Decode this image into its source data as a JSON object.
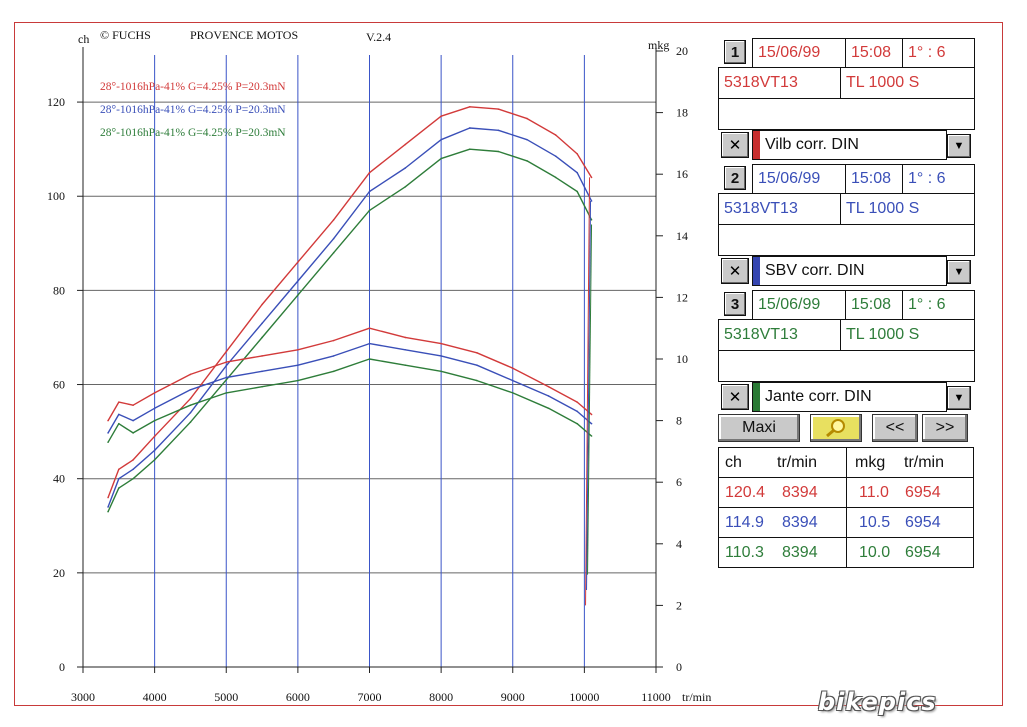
{
  "header": {
    "left_unit": "ch",
    "copyright": "© FUCHS",
    "company": "PROVENCE MOTOS",
    "version": "V.2.4",
    "right_unit": "mkg",
    "x_unit": "tr/min"
  },
  "colors": {
    "red": "#d23a3a",
    "blue": "#3a4fb8",
    "green": "#2e7d3a",
    "grid_vertical": "#3a55c8",
    "grid_horizontal": "#666666"
  },
  "chart_data": {
    "type": "line",
    "title": "",
    "xlabel": "tr/min",
    "ylabel_left": "ch",
    "ylabel_right": "mkg",
    "xlim": [
      3000,
      11000
    ],
    "x_ticks": [
      3000,
      4000,
      5000,
      6000,
      7000,
      8000,
      9000,
      10000,
      11000
    ],
    "ylim_left": [
      0,
      130
    ],
    "y_ticks_left": [
      0,
      20,
      40,
      60,
      80,
      100,
      120
    ],
    "ylim_right": [
      0,
      20
    ],
    "y_ticks_right": [
      0,
      2,
      4,
      6,
      8,
      10,
      12,
      14,
      16,
      18,
      20
    ],
    "grid": true,
    "legend": [
      {
        "label": "28°-1016hPa-41% G=4.25% P=20.3mN",
        "color": "#d23a3a"
      },
      {
        "label": "28°-1016hPa-41% G=4.25% P=20.3mN",
        "color": "#3a4fb8"
      },
      {
        "label": "28°-1016hPa-41% G=4.25% P=20.3mN",
        "color": "#2e7d3a"
      }
    ],
    "series": [
      {
        "quantity": "power",
        "axis": "left",
        "color": "#d23a3a",
        "x": [
          3350,
          3500,
          3700,
          4000,
          4500,
          5000,
          5500,
          6000,
          6500,
          7000,
          7500,
          8000,
          8400,
          8800,
          9200,
          9600,
          9900,
          10100
        ],
        "y": [
          36,
          42,
          44,
          49,
          57,
          67,
          77,
          86,
          95,
          105,
          111,
          117,
          119,
          118.5,
          116.5,
          113,
          109,
          104
        ]
      },
      {
        "quantity": "power",
        "axis": "left",
        "color": "#3a4fb8",
        "x": [
          3350,
          3500,
          3700,
          4000,
          4500,
          5000,
          5500,
          6000,
          6500,
          7000,
          7500,
          8000,
          8400,
          8800,
          9200,
          9600,
          9900,
          10100
        ],
        "y": [
          34,
          40,
          42,
          46,
          54,
          64,
          73,
          82,
          91,
          101,
          106,
          112,
          114.5,
          114,
          112,
          108.5,
          105,
          99
        ]
      },
      {
        "quantity": "power",
        "axis": "left",
        "color": "#2e7d3a",
        "x": [
          3350,
          3500,
          3700,
          4000,
          4500,
          5000,
          5500,
          6000,
          6500,
          7000,
          7500,
          8000,
          8400,
          8800,
          9200,
          9600,
          9900,
          10100
        ],
        "y": [
          33,
          38,
          40,
          44,
          52,
          61,
          70,
          79,
          88,
          97,
          102,
          108,
          110,
          109.5,
          107.5,
          104,
          101,
          95
        ]
      },
      {
        "quantity": "torque",
        "axis": "right",
        "color": "#d23a3a",
        "x": [
          3350,
          3500,
          3700,
          4000,
          4500,
          5000,
          5500,
          6000,
          6500,
          7000,
          7500,
          8000,
          8500,
          9000,
          9500,
          9900,
          10100
        ],
        "y": [
          8.0,
          8.6,
          8.5,
          8.9,
          9.5,
          9.9,
          10.1,
          10.3,
          10.6,
          11.0,
          10.7,
          10.5,
          10.2,
          9.7,
          9.1,
          8.6,
          8.2
        ]
      },
      {
        "quantity": "torque",
        "axis": "right",
        "color": "#3a4fb8",
        "x": [
          3350,
          3500,
          3700,
          4000,
          4500,
          5000,
          5500,
          6000,
          6500,
          7000,
          7500,
          8000,
          8500,
          9000,
          9500,
          9900,
          10100
        ],
        "y": [
          7.6,
          8.2,
          8.0,
          8.4,
          9.0,
          9.4,
          9.6,
          9.8,
          10.1,
          10.5,
          10.3,
          10.1,
          9.8,
          9.3,
          8.8,
          8.3,
          7.9
        ]
      },
      {
        "quantity": "torque",
        "axis": "right",
        "color": "#2e7d3a",
        "x": [
          3350,
          3500,
          3700,
          4000,
          4500,
          5000,
          5500,
          6000,
          6500,
          7000,
          7500,
          8000,
          8500,
          9000,
          9500,
          9900,
          10100
        ],
        "y": [
          7.3,
          7.9,
          7.6,
          8.0,
          8.5,
          8.9,
          9.1,
          9.3,
          9.6,
          10.0,
          9.8,
          9.6,
          9.3,
          8.9,
          8.4,
          7.9,
          7.5
        ]
      }
    ]
  },
  "runs": [
    {
      "number": "1",
      "date": "15/06/99",
      "time": "15:08",
      "ratio": "1° : 6",
      "code": "5318VT13",
      "model": "TL 1000 S",
      "correction": "Vilb corr. DIN",
      "color": "#d23a3a"
    },
    {
      "number": "2",
      "date": "15/06/99",
      "time": "15:08",
      "ratio": "1° : 6",
      "code": "5318VT13",
      "model": "TL 1000 S",
      "correction": "SBV corr. DIN",
      "color": "#3a4fb8"
    },
    {
      "number": "3",
      "date": "15/06/99",
      "time": "15:08",
      "ratio": "1° : 6",
      "code": "5318VT13",
      "model": "TL 1000 S",
      "correction": "Jante corr. DIN",
      "color": "#2e7d3a"
    }
  ],
  "toolbar": {
    "maxi_label": "Maxi",
    "prev_label": "<<",
    "next_label": ">>"
  },
  "results": {
    "headers": {
      "ch": "ch",
      "rpm1": "tr/min",
      "mkg": "mkg",
      "rpm2": "tr/min"
    },
    "rows": [
      {
        "ch": "120.4",
        "rpm1": "8394",
        "mkg": "11.0",
        "rpm2": "6954",
        "color": "#d23a3a"
      },
      {
        "ch": "114.9",
        "rpm1": "8394",
        "mkg": "10.5",
        "rpm2": "6954",
        "color": "#3a4fb8"
      },
      {
        "ch": "110.3",
        "rpm1": "8394",
        "mkg": "10.0",
        "rpm2": "6954",
        "color": "#2e7d3a"
      }
    ]
  },
  "watermark": "bikepics"
}
